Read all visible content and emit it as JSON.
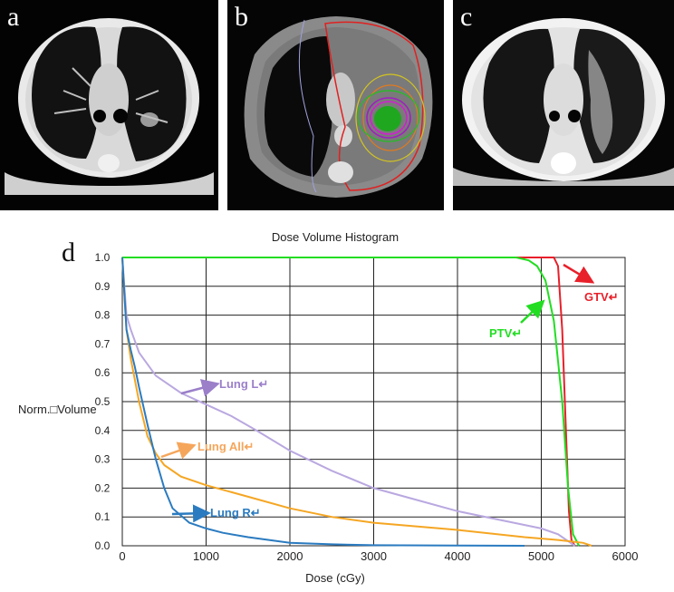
{
  "panels": [
    {
      "letter": "a",
      "description_icon": "ct-axial-pre-treatment"
    },
    {
      "letter": "b",
      "description_icon": "ct-dose-distribution-plan"
    },
    {
      "letter": "c",
      "description_icon": "ct-axial-post-treatment"
    }
  ],
  "chart_letter": "d",
  "chart_data": {
    "type": "line",
    "title": "Dose Volume Histogram",
    "xlabel": "Dose (cGy)",
    "ylabel": "Norm.□Volume",
    "xlim": [
      0,
      6000
    ],
    "ylim": [
      0,
      1
    ],
    "xticks": [
      0,
      1000,
      2000,
      3000,
      4000,
      5000,
      6000
    ],
    "yticks": [
      "0.0",
      "0.1",
      "0.2",
      "0.3",
      "0.4",
      "0.5",
      "0.6",
      "0.7",
      "0.8",
      "0.9",
      "1.0"
    ],
    "grid": true,
    "series": [
      {
        "name": "GTV",
        "color": "#e8202a",
        "x": [
          0,
          5150,
          5200,
          5250,
          5300,
          5330,
          5360,
          5400
        ],
        "y": [
          1.0,
          1.0,
          0.97,
          0.75,
          0.35,
          0.12,
          0.02,
          0.0
        ]
      },
      {
        "name": "PTV",
        "color": "#22dd22",
        "x": [
          0,
          4700,
          4850,
          4950,
          5050,
          5150,
          5250,
          5320,
          5380,
          5450
        ],
        "y": [
          1.0,
          1.0,
          0.99,
          0.97,
          0.92,
          0.78,
          0.5,
          0.2,
          0.04,
          0.0
        ]
      },
      {
        "name": "Lung L",
        "color": "#b9a8e0",
        "x": [
          0,
          50,
          100,
          200,
          400,
          700,
          1000,
          1300,
          1600,
          2000,
          2500,
          3000,
          3500,
          4000,
          4500,
          5000,
          5200,
          5400
        ],
        "y": [
          1.0,
          0.8,
          0.75,
          0.67,
          0.59,
          0.53,
          0.49,
          0.45,
          0.4,
          0.33,
          0.26,
          0.2,
          0.16,
          0.12,
          0.09,
          0.06,
          0.04,
          0.0
        ]
      },
      {
        "name": "Lung All",
        "color": "#f5a623",
        "x": [
          0,
          50,
          100,
          200,
          300,
          400,
          500,
          700,
          1000,
          1500,
          2000,
          2500,
          3000,
          4000,
          4800,
          5200,
          5500,
          5600
        ],
        "y": [
          1.0,
          0.75,
          0.65,
          0.5,
          0.38,
          0.32,
          0.28,
          0.24,
          0.21,
          0.17,
          0.13,
          0.1,
          0.08,
          0.055,
          0.03,
          0.02,
          0.01,
          0.0
        ]
      },
      {
        "name": "Lung R",
        "color": "#2b7bc0",
        "x": [
          0,
          50,
          100,
          150,
          200,
          300,
          400,
          500,
          600,
          800,
          1000,
          1200,
          1500,
          2000,
          2500,
          3000,
          4000,
          4800
        ],
        "y": [
          1.0,
          0.75,
          0.68,
          0.62,
          0.55,
          0.42,
          0.3,
          0.2,
          0.13,
          0.08,
          0.06,
          0.045,
          0.03,
          0.01,
          0.005,
          0.002,
          0.001,
          0.0
        ]
      }
    ],
    "annotations": [
      {
        "text": "GTV↵",
        "color": "#e8202a"
      },
      {
        "text": "PTV↵",
        "color": "#22dd22"
      },
      {
        "text": "Lung L↵",
        "color": "#9b7fc9"
      },
      {
        "text": "Lung All↵",
        "color": "#f5a65b"
      },
      {
        "text": "Lung R↵",
        "color": "#2b7bc0"
      }
    ]
  }
}
